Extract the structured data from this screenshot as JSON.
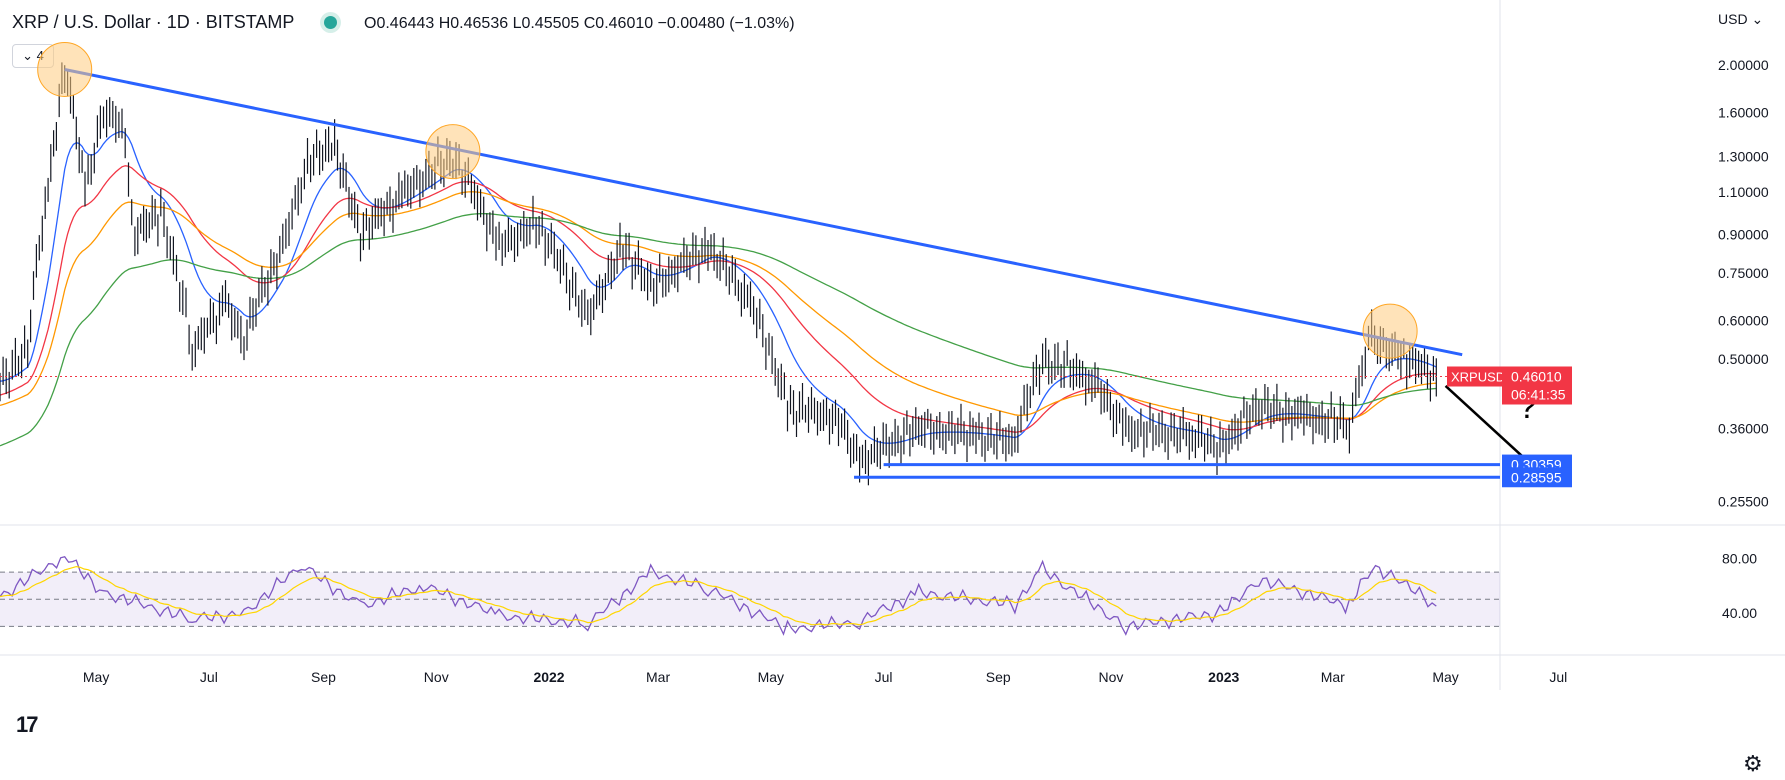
{
  "header": {
    "symbol": "XRP / U.S. Dollar · 1D · BITSTAMP",
    "ohlc": "O0.46443 H0.46536 L0.45505 C0.46010 −0.00480 (−1.03%)",
    "indicator_count": "4",
    "currency": "USD"
  },
  "colors": {
    "trendline": "#2962ff",
    "support": "#2962ff",
    "ma_fast": "#2962ff",
    "ma_mid": "#f23645",
    "ma_slow": "#ff9800",
    "ma_long": "#43a047",
    "rsi": "#7e57c2",
    "rsi_signal": "#ffd600",
    "price_label": "#f23645",
    "highlight": "#ffcc80"
  },
  "chart_data": [
    {
      "type": "line",
      "title": "XRP / U.S. Dollar · 1D · BITSTAMP",
      "scale": "log",
      "y_ticks": [
        "2.00000",
        "1.60000",
        "1.30000",
        "1.10000",
        "0.90000",
        "0.75000",
        "0.60000",
        "0.50000",
        "0.36000",
        "0.25500"
      ],
      "y_tick_values": [
        2.0,
        1.6,
        1.3,
        1.1,
        0.9,
        0.75,
        0.6,
        0.5,
        0.36,
        0.255
      ],
      "x_ticks": [
        "May",
        "Jul",
        "Sep",
        "Nov",
        "2022",
        "Mar",
        "May",
        "Jul",
        "Sep",
        "Nov",
        "2023",
        "Mar",
        "May",
        "Jul"
      ],
      "x_tick_dates": [
        "2021-05-01",
        "2021-07-01",
        "2021-09-01",
        "2021-11-01",
        "2022-01-01",
        "2022-03-01",
        "2022-05-01",
        "2022-07-01",
        "2022-09-01",
        "2022-11-01",
        "2023-01-01",
        "2023-03-01",
        "2023-05-01",
        "2023-07-01"
      ],
      "x_range": [
        "2021-03-10",
        "2023-08-25"
      ],
      "ylim": [
        0.245,
        2.2
      ],
      "price_series": [
        {
          "date": "2021-03-10",
          "value": 0.45
        },
        {
          "date": "2021-03-25",
          "value": 0.52
        },
        {
          "date": "2021-04-05",
          "value": 1.1
        },
        {
          "date": "2021-04-14",
          "value": 1.96
        },
        {
          "date": "2021-04-25",
          "value": 1.1
        },
        {
          "date": "2021-05-05",
          "value": 1.6
        },
        {
          "date": "2021-05-15",
          "value": 1.5
        },
        {
          "date": "2021-05-22",
          "value": 0.9
        },
        {
          "date": "2021-06-05",
          "value": 1.0
        },
        {
          "date": "2021-06-22",
          "value": 0.52
        },
        {
          "date": "2021-07-10",
          "value": 0.65
        },
        {
          "date": "2021-07-20",
          "value": 0.55
        },
        {
          "date": "2021-08-10",
          "value": 0.85
        },
        {
          "date": "2021-08-25",
          "value": 1.3
        },
        {
          "date": "2021-09-07",
          "value": 1.35
        },
        {
          "date": "2021-09-21",
          "value": 0.9
        },
        {
          "date": "2021-10-15",
          "value": 1.1
        },
        {
          "date": "2021-11-10",
          "value": 1.3
        },
        {
          "date": "2021-12-05",
          "value": 0.85
        },
        {
          "date": "2021-12-25",
          "value": 0.95
        },
        {
          "date": "2022-01-22",
          "value": 0.6
        },
        {
          "date": "2022-02-10",
          "value": 0.85
        },
        {
          "date": "2022-02-25",
          "value": 0.7
        },
        {
          "date": "2022-03-28",
          "value": 0.85
        },
        {
          "date": "2022-04-20",
          "value": 0.65
        },
        {
          "date": "2022-05-10",
          "value": 0.4
        },
        {
          "date": "2022-06-05",
          "value": 0.38
        },
        {
          "date": "2022-06-18",
          "value": 0.31
        },
        {
          "date": "2022-07-20",
          "value": 0.36
        },
        {
          "date": "2022-08-20",
          "value": 0.35
        },
        {
          "date": "2022-09-10",
          "value": 0.34
        },
        {
          "date": "2022-09-25",
          "value": 0.5
        },
        {
          "date": "2022-10-20",
          "value": 0.46
        },
        {
          "date": "2022-11-09",
          "value": 0.36
        },
        {
          "date": "2022-12-15",
          "value": 0.35
        },
        {
          "date": "2022-12-30",
          "value": 0.33
        },
        {
          "date": "2023-01-20",
          "value": 0.4
        },
        {
          "date": "2023-02-15",
          "value": 0.38
        },
        {
          "date": "2023-03-10",
          "value": 0.37
        },
        {
          "date": "2023-03-22",
          "value": 0.55
        },
        {
          "date": "2023-04-10",
          "value": 0.5
        },
        {
          "date": "2023-04-26",
          "value": 0.46
        }
      ],
      "last_price_label": {
        "symbol": "XRPUSD",
        "price": "0.46010",
        "countdown": "06:41:35",
        "value": 0.4601
      },
      "trendline": {
        "from": {
          "date": "2021-04-14",
          "value": 1.96
        },
        "to": {
          "date": "2023-05-10",
          "value": 0.51
        }
      },
      "support_levels": [
        {
          "label": "0.30359",
          "value": 0.30359,
          "from_date": "2022-07-01"
        },
        {
          "label": "0.28595",
          "value": 0.28595,
          "from_date": "2022-06-15"
        }
      ],
      "highlight_points": [
        {
          "date": "2021-04-14",
          "value": 1.96
        },
        {
          "date": "2021-11-10",
          "value": 1.33
        },
        {
          "date": "2023-04-01",
          "value": 0.57
        }
      ],
      "annotation": {
        "text": "?",
        "arrow_from": {
          "date": "2023-05-01",
          "value": 0.44
        },
        "arrow_to": {
          "date": "2023-06-20",
          "value": 0.295
        }
      }
    },
    {
      "type": "line",
      "title": "",
      "y_ticks": [
        "80.00",
        "40.00"
      ],
      "y_tick_values": [
        80,
        40
      ],
      "band": [
        30,
        70
      ],
      "midline": 50,
      "rsi_series": [
        {
          "date": "2021-03-10",
          "value": 52
        },
        {
          "date": "2021-04-14",
          "value": 82
        },
        {
          "date": "2021-05-05",
          "value": 55
        },
        {
          "date": "2021-06-22",
          "value": 35
        },
        {
          "date": "2021-07-20",
          "value": 40
        },
        {
          "date": "2021-08-20",
          "value": 75
        },
        {
          "date": "2021-09-21",
          "value": 45
        },
        {
          "date": "2021-10-25",
          "value": 60
        },
        {
          "date": "2021-12-05",
          "value": 38
        },
        {
          "date": "2022-01-22",
          "value": 32
        },
        {
          "date": "2022-02-25",
          "value": 70
        },
        {
          "date": "2022-03-28",
          "value": 58
        },
        {
          "date": "2022-05-10",
          "value": 28
        },
        {
          "date": "2022-06-18",
          "value": 34
        },
        {
          "date": "2022-07-20",
          "value": 55
        },
        {
          "date": "2022-09-10",
          "value": 46
        },
        {
          "date": "2022-09-25",
          "value": 72
        },
        {
          "date": "2022-11-09",
          "value": 30
        },
        {
          "date": "2022-12-30",
          "value": 40
        },
        {
          "date": "2023-01-20",
          "value": 65
        },
        {
          "date": "2023-03-10",
          "value": 45
        },
        {
          "date": "2023-03-22",
          "value": 75
        },
        {
          "date": "2023-04-10",
          "value": 60
        },
        {
          "date": "2023-04-26",
          "value": 45
        }
      ]
    }
  ]
}
